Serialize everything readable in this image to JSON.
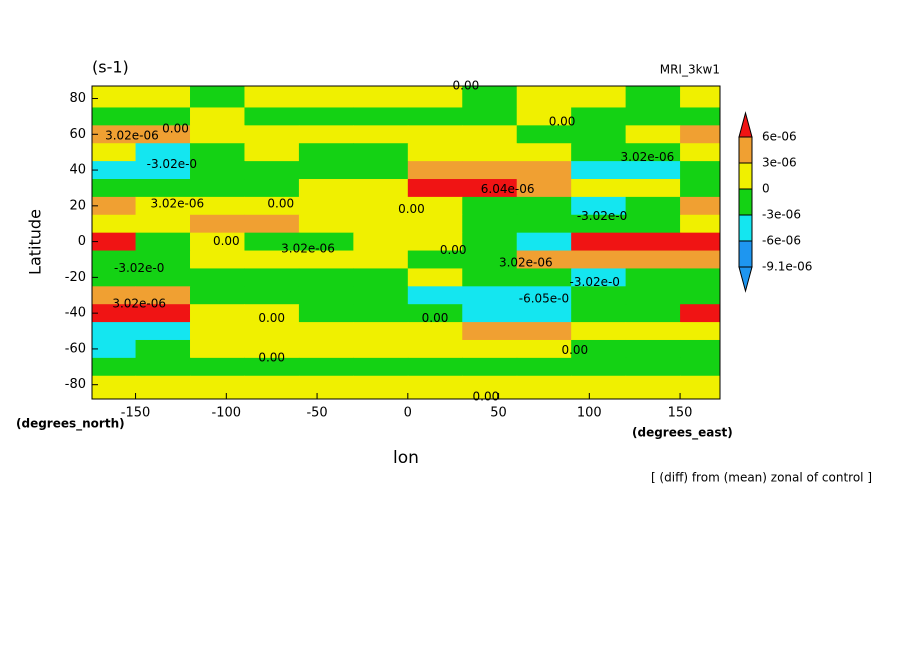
{
  "chart_data": {
    "type": "contour",
    "title": "(s-1)",
    "subtitle": "MRI_3kw1",
    "x_label": "lon",
    "y_label": "Latitude",
    "x_units": "(degrees_east)",
    "y_units": "(degrees_north)",
    "footnote": "[ (diff) from (mean) zonal of control ]",
    "xlim": [
      -174,
      172
    ],
    "ylim": [
      -88,
      87
    ],
    "xticks": [
      -150,
      -100,
      -50,
      0,
      50,
      100,
      150
    ],
    "yticks": [
      -80,
      -60,
      -40,
      -20,
      0,
      20,
      40,
      60,
      80
    ],
    "x": [
      -165,
      -135,
      -105,
      -75,
      -45,
      -15,
      15,
      45,
      75,
      105,
      135,
      165
    ],
    "y": [
      80,
      70,
      60,
      50,
      40,
      30,
      20,
      10,
      0,
      -10,
      -20,
      -30,
      -40,
      -50,
      -60,
      -70,
      -80
    ],
    "z": [
      [
        1e-06,
        1e-06,
        -1e-06,
        1e-06,
        1e-06,
        1e-06,
        1e-06,
        -1e-06,
        1e-06,
        1e-06,
        -1e-06,
        1e-06
      ],
      [
        -1e-06,
        -1e-06,
        1e-06,
        -1e-06,
        -1e-06,
        -1e-06,
        -1e-06,
        -1e-06,
        1e-06,
        -1e-06,
        -1e-06,
        -1e-06
      ],
      [
        4e-06,
        4e-06,
        2e-06,
        1e-06,
        1e-06,
        1e-06,
        2e-06,
        1e-06,
        -1e-06,
        -1e-06,
        1e-06,
        4e-06
      ],
      [
        1e-06,
        -4e-06,
        -1e-06,
        1e-06,
        -1e-06,
        -1e-06,
        1e-06,
        2e-06,
        1e-06,
        -1e-06,
        -1e-06,
        1e-06
      ],
      [
        -4e-06,
        -4e-06,
        -1e-06,
        -1e-06,
        -1e-06,
        -1e-06,
        4e-06,
        4e-06,
        4e-06,
        -4e-06,
        -4e-06,
        -1e-06
      ],
      [
        -1e-06,
        -1e-06,
        -1e-06,
        -1e-06,
        1e-06,
        1e-06,
        7e-06,
        7e-06,
        4e-06,
        1e-06,
        1e-06,
        -1e-06
      ],
      [
        4e-06,
        1e-06,
        1e-06,
        1e-06,
        1e-06,
        1e-06,
        1e-06,
        -1e-06,
        -1e-06,
        -4e-06,
        -1e-06,
        4e-06
      ],
      [
        1e-06,
        1e-06,
        4e-06,
        4e-06,
        1e-06,
        1e-06,
        1e-06,
        -1e-06,
        -1e-06,
        -1e-06,
        -1e-06,
        1e-06
      ],
      [
        7e-06,
        -1e-06,
        1e-06,
        -1e-06,
        -1e-06,
        1e-06,
        1e-06,
        -1e-06,
        -4e-06,
        7e-06,
        7e-06,
        7e-06
      ],
      [
        -1e-06,
        -1e-06,
        1e-06,
        1e-06,
        1e-06,
        1e-06,
        -1e-06,
        -1e-06,
        4e-06,
        4e-06,
        4e-06,
        4e-06
      ],
      [
        -1e-06,
        -1e-06,
        -1e-06,
        -1e-06,
        -1e-06,
        -1e-06,
        1e-06,
        -1e-06,
        -1e-06,
        -4e-06,
        -1e-06,
        -1e-06
      ],
      [
        4e-06,
        4e-06,
        -1e-06,
        -1e-06,
        -1e-06,
        -1e-06,
        -4e-06,
        -4e-06,
        -4e-06,
        -1e-06,
        -1e-06,
        -1e-06
      ],
      [
        7e-06,
        7e-06,
        1e-06,
        1e-06,
        -1e-06,
        -1e-06,
        -1e-06,
        -4e-06,
        -4e-06,
        -1e-06,
        -1e-06,
        7e-06
      ],
      [
        -4e-06,
        -4e-06,
        1e-06,
        1e-06,
        1e-06,
        1e-06,
        1e-06,
        4e-06,
        4e-06,
        1e-06,
        1e-06,
        1e-06
      ],
      [
        -4e-06,
        -1e-06,
        1e-06,
        1e-06,
        1e-06,
        1e-06,
        1e-06,
        1e-06,
        1e-06,
        -1e-06,
        -1e-06,
        -1e-06
      ],
      [
        -1e-06,
        -1e-06,
        -1e-06,
        -1e-06,
        -1e-06,
        -1e-06,
        -1e-06,
        -1e-06,
        -1e-06,
        -1e-06,
        -1e-06,
        -1e-06
      ],
      [
        1e-06,
        1e-06,
        1e-06,
        1e-06,
        1e-06,
        1e-06,
        1e-06,
        1e-06,
        1e-06,
        1e-06,
        1e-06,
        1e-06
      ]
    ],
    "levels": [
      {
        "value": 6e-06,
        "label": "6e-06"
      },
      {
        "value": 3e-06,
        "label": "3e-06"
      },
      {
        "value": 0,
        "label": "0"
      },
      {
        "value": -3e-06,
        "label": "-3e-06"
      },
      {
        "value": -6e-06,
        "label": "-6e-06"
      },
      {
        "value": -9.1e-06,
        "label": "-9.1e-06"
      }
    ],
    "colors": [
      "#f01414",
      "#f0a032",
      "#f0f000",
      "#14d214",
      "#14e6f0",
      "#1e96f0",
      "#1e96f0"
    ],
    "annotations": [
      {
        "text": "0.00",
        "x": 32,
        "y": 87
      },
      {
        "text": "0.00",
        "x": 85,
        "y": 67
      },
      {
        "text": "3.02e-06",
        "x": -152,
        "y": 59
      },
      {
        "text": "0.00",
        "x": -128,
        "y": 63
      },
      {
        "text": "-3.02e-0",
        "x": -130,
        "y": 43
      },
      {
        "text": "3.02e-06",
        "x": 132,
        "y": 47
      },
      {
        "text": "6.04e-06",
        "x": 55,
        "y": 29
      },
      {
        "text": "3.02e-06",
        "x": -127,
        "y": 21
      },
      {
        "text": "0.00",
        "x": -70,
        "y": 21
      },
      {
        "text": "0.00",
        "x": 2,
        "y": 18
      },
      {
        "text": "-3.02e-0",
        "x": 107,
        "y": 14
      },
      {
        "text": "0.00",
        "x": -100,
        "y": 0
      },
      {
        "text": "3.02e-06",
        "x": -55,
        "y": -4
      },
      {
        "text": "0.00",
        "x": 25,
        "y": -5
      },
      {
        "text": "-3.02e-0",
        "x": -148,
        "y": -15
      },
      {
        "text": "3.02e-06",
        "x": 65,
        "y": -12
      },
      {
        "text": "-3.02e-0",
        "x": 103,
        "y": -23
      },
      {
        "text": "-6.05e-0",
        "x": 75,
        "y": -32
      },
      {
        "text": "3.02e-06",
        "x": -148,
        "y": -35
      },
      {
        "text": "0.00",
        "x": -75,
        "y": -43
      },
      {
        "text": "0.00",
        "x": 15,
        "y": -43
      },
      {
        "text": "0.00",
        "x": -75,
        "y": -65
      },
      {
        "text": "0.00",
        "x": 92,
        "y": -61
      },
      {
        "text": "0.00",
        "x": 43,
        "y": -87
      }
    ]
  }
}
